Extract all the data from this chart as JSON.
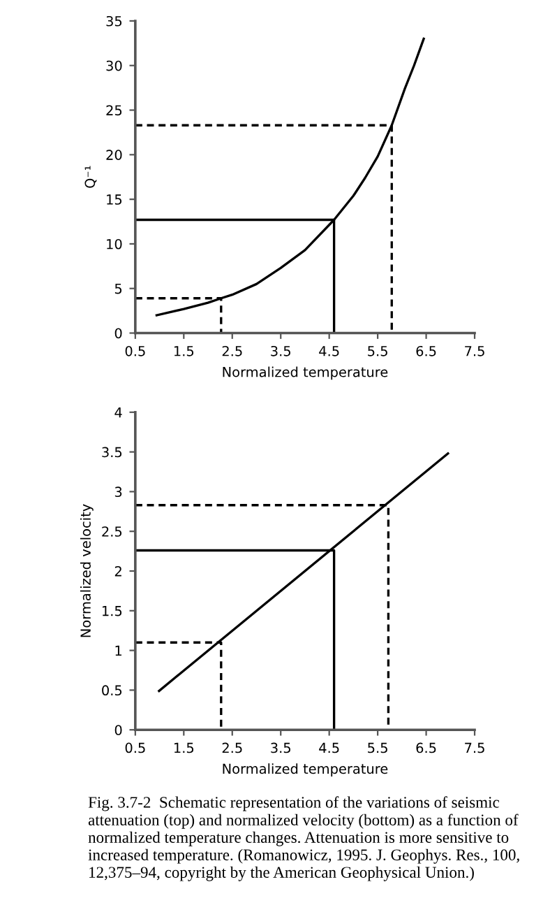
{
  "chart_data": [
    {
      "type": "line",
      "xlabel": "Normalized temperature",
      "ylabel": "Q⁻¹",
      "xlim": [
        0.5,
        7.5
      ],
      "ylim": [
        0,
        35
      ],
      "xticks": [
        0.5,
        1.5,
        2.5,
        3.5,
        4.5,
        5.5,
        6.5,
        7.5
      ],
      "yticks": [
        0,
        5,
        10,
        15,
        20,
        25,
        30,
        35
      ],
      "grid": false,
      "legend": false,
      "series": [
        {
          "color": "#000000",
          "line_style": "solid",
          "x": [
            0.94,
            1.5,
            2.0,
            2.27,
            2.5,
            3.0,
            3.5,
            4.0,
            4.6,
            5.0,
            5.24,
            5.5,
            5.79,
            6.06,
            6.25,
            6.45
          ],
          "values": [
            2.0,
            2.7,
            3.4,
            3.9,
            4.3,
            5.5,
            7.3,
            9.3,
            12.7,
            15.4,
            17.4,
            19.8,
            23.3,
            27.4,
            30.0,
            33.0
          ]
        },
        {
          "color": "#000000",
          "line_style": "dashed",
          "x": [
            0.5,
            2.27,
            2.27
          ],
          "values": [
            3.9,
            3.9,
            0
          ]
        },
        {
          "color": "#000000",
          "line_style": "solid",
          "x": [
            0.5,
            4.6,
            4.6
          ],
          "values": [
            12.7,
            12.7,
            0
          ]
        },
        {
          "color": "#000000",
          "line_style": "dashed",
          "x": [
            0.5,
            5.79,
            5.79
          ],
          "values": [
            23.3,
            23.3,
            0
          ]
        }
      ]
    },
    {
      "type": "line",
      "xlabel": "Normalized temperature",
      "ylabel": "Normalized velocity",
      "xlim": [
        0.5,
        7.5
      ],
      "ylim": [
        0,
        4
      ],
      "xticks": [
        0.5,
        1.5,
        2.5,
        3.5,
        4.5,
        5.5,
        6.5,
        7.5
      ],
      "yticks": [
        0,
        0.5,
        1,
        1.5,
        2,
        2.5,
        3,
        3.5,
        4
      ],
      "grid": false,
      "legend": false,
      "annotations": [
        "Fig. 3.7-2  Schematic representation of the variations of seismic attenuation (top) and normalized velocity (bottom) as a function of normalized temperature changes. Attenuation is more sensitive to increased temperature. (Romanowicz, 1995. J. Geophys. Res., 100, 12,375–94, copyright by the American Geophysical Union.)"
      ],
      "series": [
        {
          "color": "#000000",
          "line_style": "solid",
          "x": [
            0.99,
            6.95
          ],
          "values": [
            0.49,
            3.48
          ]
        },
        {
          "color": "#000000",
          "line_style": "dashed",
          "x": [
            0.5,
            2.27,
            2.27
          ],
          "values": [
            1.1,
            1.1,
            0
          ]
        },
        {
          "color": "#000000",
          "line_style": "solid",
          "x": [
            0.5,
            4.6,
            4.6
          ],
          "values": [
            2.26,
            2.26,
            0
          ]
        },
        {
          "color": "#000000",
          "line_style": "dashed",
          "x": [
            0.5,
            5.72,
            5.72
          ],
          "values": [
            2.83,
            2.83,
            0
          ]
        }
      ]
    }
  ]
}
